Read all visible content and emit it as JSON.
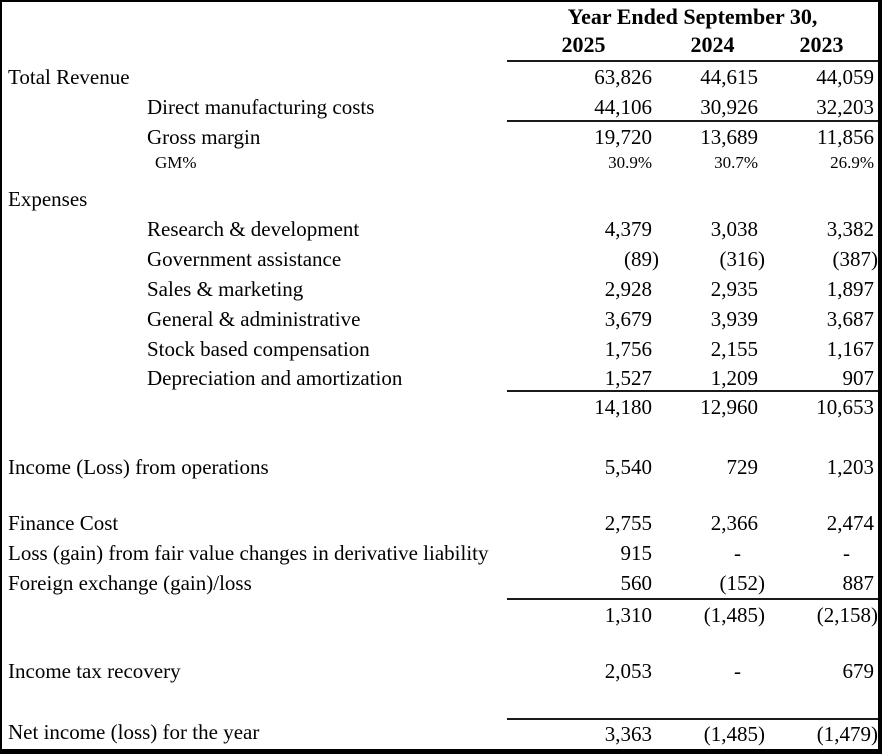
{
  "table": {
    "header": {
      "title": "Year Ended September 30,",
      "col_2025": "2025",
      "col_2024": "2024",
      "col_2023": "2023"
    },
    "rows": [
      {
        "label": "Total Revenue",
        "v2025": "63,826",
        "v2024": "44,615",
        "v2023": "44,059"
      },
      {
        "label": "Direct manufacturing costs",
        "v2025": "44,106",
        "v2024": "30,926",
        "v2023": "32,203"
      },
      {
        "label": "Gross margin",
        "v2025": "19,720",
        "v2024": "13,689",
        "v2023": "11,856"
      },
      {
        "label": "GM%",
        "v2025": "30.9%",
        "v2024": "30.7%",
        "v2023": "26.9%"
      },
      {
        "label": "Expenses",
        "v2025": "",
        "v2024": "",
        "v2023": ""
      },
      {
        "label": "Research & development",
        "v2025": "4,379",
        "v2024": "3,038",
        "v2023": "3,382"
      },
      {
        "label": "Government assistance",
        "v2025": "(89)",
        "v2024": "(316)",
        "v2023": "(387)"
      },
      {
        "label": "Sales & marketing",
        "v2025": "2,928",
        "v2024": "2,935",
        "v2023": "1,897"
      },
      {
        "label": "General & administrative",
        "v2025": "3,679",
        "v2024": "3,939",
        "v2023": "3,687"
      },
      {
        "label": "Stock based compensation",
        "v2025": "1,756",
        "v2024": "2,155",
        "v2023": "1,167"
      },
      {
        "label": "Depreciation and amortization",
        "v2025": "1,527",
        "v2024": "1,209",
        "v2023": "907"
      },
      {
        "label": "",
        "v2025": "14,180",
        "v2024": "12,960",
        "v2023": "10,653"
      },
      {
        "label": "Income (Loss) from operations",
        "v2025": "5,540",
        "v2024": "729",
        "v2023": "1,203"
      },
      {
        "label": "Finance Cost",
        "v2025": "2,755",
        "v2024": "2,366",
        "v2023": "2,474"
      },
      {
        "label": "Loss (gain) from fair value changes in derivative liability",
        "v2025": "915",
        "v2024": "-",
        "v2023": "-"
      },
      {
        "label": "Foreign exchange (gain)/loss",
        "v2025": "560",
        "v2024": "(152)",
        "v2023": "887"
      },
      {
        "label": "",
        "v2025": "1,310",
        "v2024": "(1,485)",
        "v2023": "(2,158)"
      },
      {
        "label": "Income tax recovery",
        "v2025": "2,053",
        "v2024": "-",
        "v2023": "679"
      },
      {
        "label": "Net income (loss) for the year",
        "v2025": "3,363",
        "v2024": "(1,485)",
        "v2023": "(1,479)"
      }
    ]
  }
}
